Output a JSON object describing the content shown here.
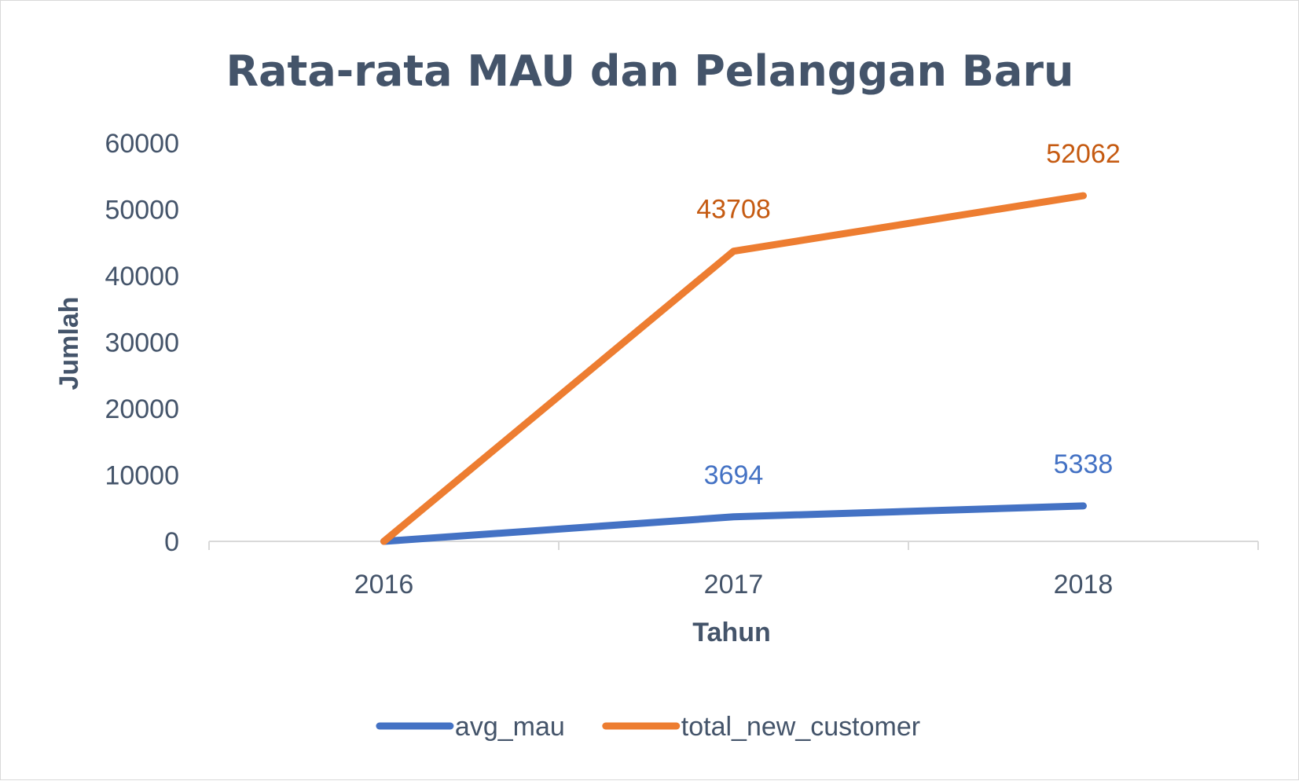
{
  "chart_data": {
    "type": "line",
    "title": "Rata-rata MAU dan Pelanggan Baru",
    "xlabel": "Tahun",
    "ylabel": "Jumlah",
    "categories": [
      "2016",
      "2017",
      "2018"
    ],
    "ylim": [
      0,
      60000
    ],
    "yticks": [
      0,
      10000,
      20000,
      30000,
      40000,
      50000,
      60000
    ],
    "grid": false,
    "legend": "bottom",
    "series": [
      {
        "name": "avg_mau",
        "color": "#4472c4",
        "values": [
          0,
          3694,
          5338
        ],
        "labels": [
          "",
          "3694",
          "5338"
        ]
      },
      {
        "name": "total_new_customer",
        "color": "#ed7d31",
        "label_color": "#c55a11",
        "values": [
          0,
          43708,
          52062
        ],
        "labels": [
          "",
          "43708",
          "52062"
        ]
      }
    ]
  }
}
